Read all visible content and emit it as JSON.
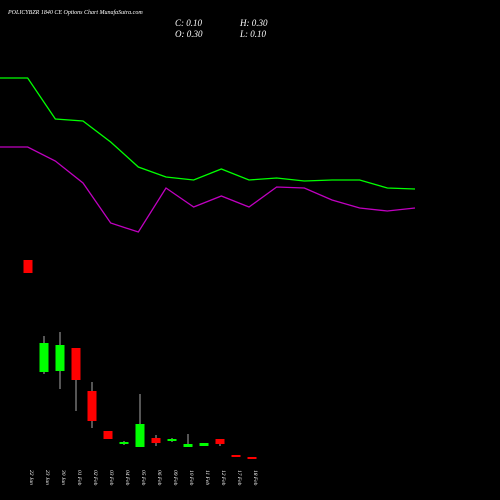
{
  "header": {
    "title": "POLICYBZR 1840 CE Options Chart MunafaSutra.com",
    "close": "C: 0.10",
    "high": "H: 0.30",
    "open": "O: 0.30",
    "low": "L: 0.10"
  },
  "chart_data": [
    {
      "type": "candlestick",
      "categories": [
        "22 Jan",
        "23 Jan",
        "30 Jan",
        "01 Feb",
        "02 Feb",
        "03 Feb",
        "04 Feb",
        "05 Feb",
        "06 Feb",
        "09 Feb",
        "10 Feb",
        "11 Feb",
        "12 Feb",
        "17 Feb",
        "18 Feb"
      ],
      "open": [
        20.0,
        8.8,
        8.9,
        11.2,
        6.9,
        2.9,
        1.6,
        1.3,
        2.2,
        1.9,
        1.3,
        1.4,
        2.1,
        0.5,
        0.3
      ],
      "high": [
        20.0,
        12.4,
        12.8,
        11.2,
        7.8,
        2.9,
        1.9,
        6.6,
        2.5,
        2.2,
        2.6,
        1.7,
        2.1,
        0.5,
        0.3
      ],
      "low": [
        18.7,
        8.6,
        7.1,
        4.9,
        3.2,
        2.1,
        1.5,
        1.3,
        1.4,
        1.8,
        1.3,
        1.4,
        1.4,
        0.3,
        0.1
      ],
      "close": [
        18.7,
        11.7,
        11.5,
        8.0,
        3.9,
        2.1,
        1.8,
        3.6,
        1.7,
        2.1,
        1.6,
        1.7,
        1.6,
        0.3,
        0.1
      ],
      "up_color": "#00ff00",
      "down_color": "#ff0000",
      "ylim": [
        0,
        46
      ]
    },
    {
      "type": "line",
      "categories": [
        null,
        null,
        null,
        null,
        null,
        null,
        null,
        null,
        null,
        null,
        null,
        null,
        null,
        null,
        null,
        null
      ],
      "series": [
        {
          "color": "#00ff00",
          "values": [
            38.2,
            38.2,
            34.1,
            33.9,
            31.8,
            29.3,
            28.3,
            28.0,
            29.1,
            28.0,
            28.2,
            27.9,
            28.0,
            28.0,
            27.2,
            27.1
          ]
        },
        {
          "color": "#c000c0",
          "values": [
            31.3,
            31.3,
            29.9,
            27.7,
            23.7,
            22.8,
            27.2,
            25.3,
            26.4,
            25.3,
            27.3,
            27.2,
            26.0,
            25.2,
            24.9,
            25.2
          ]
        }
      ],
      "ylim": [
        0,
        46
      ]
    }
  ]
}
